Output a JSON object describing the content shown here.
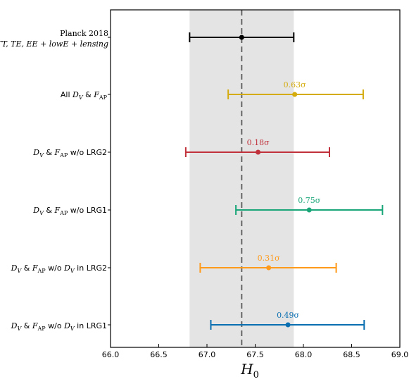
{
  "chart_data": {
    "type": "errorbar",
    "xlabel": "H_0",
    "xlim": [
      66.0,
      69.0
    ],
    "xticks": [
      "66.0",
      "66.5",
      "67.0",
      "67.5",
      "68.0",
      "68.5",
      "69.0"
    ],
    "reference": {
      "value": 67.36,
      "band": [
        66.82,
        67.9
      ],
      "style": "dashed"
    },
    "grid": false,
    "points": [
      {
        "value": 67.36,
        "lo": 66.82,
        "hi": 67.9,
        "color": "#000000",
        "sigma": ""
      },
      {
        "value": 67.91,
        "lo": 67.22,
        "hi": 68.62,
        "color": "#d4ac0d",
        "sigma": "0.63σ"
      },
      {
        "value": 67.53,
        "lo": 66.78,
        "hi": 68.27,
        "color": "#c0313b",
        "sigma": "0.18σ"
      },
      {
        "value": 68.06,
        "lo": 67.3,
        "hi": 68.82,
        "color": "#1aa679",
        "sigma": "0.75σ"
      },
      {
        "value": 67.64,
        "lo": 66.93,
        "hi": 68.34,
        "color": "#ff9a1a",
        "sigma": "0.31σ"
      },
      {
        "value": 67.84,
        "lo": 67.04,
        "hi": 68.63,
        "color": "#0a6fb1",
        "sigma": "0.49σ"
      }
    ]
  },
  "labels": {
    "row0_line1": "Planck 2018",
    "row0_line2": "TT, TE, EE + lowE + lensing",
    "row1": {
      "pre": "All ",
      "dv": "D",
      "dv_sub": "V",
      "amp": " & ",
      "f": "F",
      "f_sub": "AP",
      "post": ""
    },
    "row2": {
      "dv": "D",
      "dv_sub": "V",
      "amp": " & ",
      "f": "F",
      "f_sub": "AP",
      "post": " w/o LRG2"
    },
    "row3": {
      "dv": "D",
      "dv_sub": "V",
      "amp": " & ",
      "f": "F",
      "f_sub": "AP",
      "post": " w/o LRG1"
    },
    "row4": {
      "dv": "D",
      "dv_sub": "V",
      "amp": " & ",
      "f": "F",
      "f_sub": "AP",
      "mid": " w/o ",
      "dv2": "D",
      "dv2_sub": "V",
      "post": " in LRG2"
    },
    "row5": {
      "dv": "D",
      "dv_sub": "V",
      "amp": " & ",
      "f": "F",
      "f_sub": "AP",
      "mid": " w/o ",
      "dv2": "D",
      "dv2_sub": "V",
      "post": " in LRG1"
    }
  },
  "axis": {
    "title": "H",
    "title_sub": "0"
  }
}
